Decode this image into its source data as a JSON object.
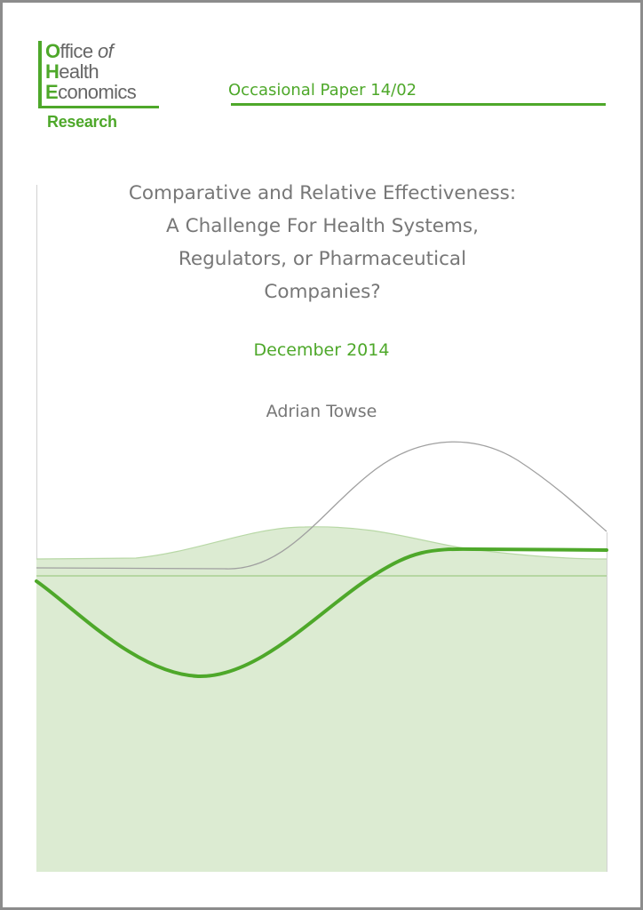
{
  "logo": {
    "line1": {
      "cap": "O",
      "rest": "ffice ",
      "italic": "of"
    },
    "line2": {
      "cap": "H",
      "rest": "ealth"
    },
    "line3": {
      "cap": "E",
      "rest": "conomics"
    },
    "research": "Research"
  },
  "series": "Occasional Paper 14/02",
  "title": {
    "lines": [
      "Comparative and Relative Effectiveness:",
      "A Challenge For Health Systems,",
      "Regulators, or Pharmaceutical",
      "Companies?"
    ]
  },
  "date": "December 2014",
  "author": "Adrian Towse",
  "colors": {
    "brand_green": "#4ea82a",
    "area_fill": "#dcebd2",
    "grey_text": "#777777",
    "grey_curve": "#a0a0a0"
  }
}
